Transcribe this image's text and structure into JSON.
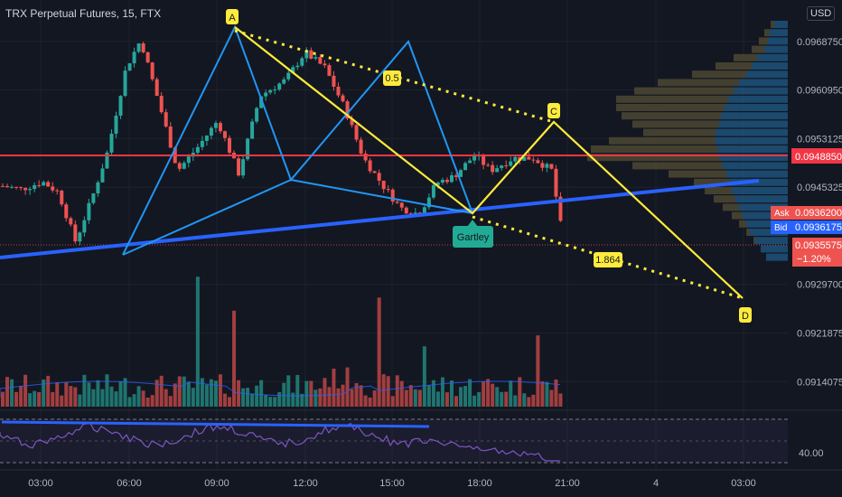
{
  "header": {
    "title": "TRX Perpetual Futures, 15, FTX",
    "currency": "USD"
  },
  "chart_data": {
    "type": "candlestick",
    "price_axis": {
      "ticks": [
        "0.0968750",
        "0.0960950",
        "0.0953125",
        "0.0945325",
        "0.0929700",
        "0.0921875",
        "0.0914075"
      ],
      "ylim": [
        0.09115,
        0.09725
      ]
    },
    "time_axis": {
      "ticks": [
        "03:00",
        "06:00",
        "09:00",
        "12:00",
        "15:00",
        "18:00",
        "21:00",
        "4",
        "03:00"
      ]
    },
    "price_labels": {
      "red_line": "0.0948850",
      "ask_label": "Ask",
      "ask": "0.0936200",
      "bid_label": "Bid",
      "bid": "0.0936175",
      "last": "0.0935575",
      "change": "−1.20%"
    },
    "rsi_axis": {
      "tick": "40.00"
    },
    "pattern": {
      "name": "Gartley",
      "points": [
        {
          "label": "A"
        },
        {
          "label": "C"
        },
        {
          "label": "D"
        }
      ],
      "ratios": [
        "0.5",
        "1.864"
      ]
    },
    "colors": {
      "up": "#26a69a",
      "down": "#ef5350",
      "harmonic": "#ffeb3b",
      "trend": "#2962ff",
      "pattern_lines": "#2196f3",
      "resistance": "#f23645",
      "gartley_badge": "#22ab94"
    }
  }
}
